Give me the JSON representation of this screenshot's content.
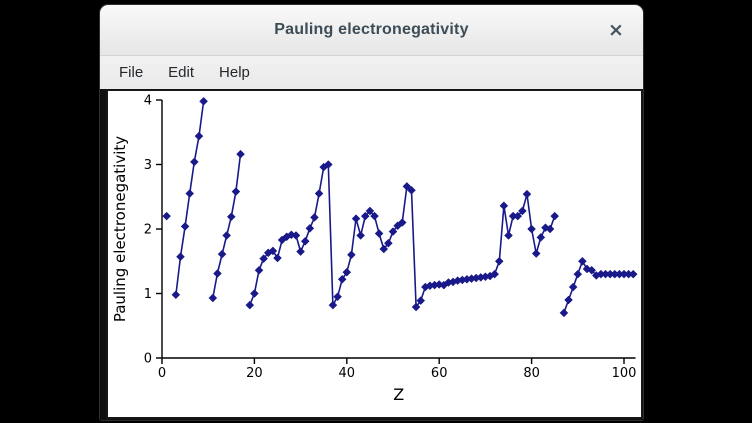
{
  "window": {
    "title": "Pauling electronegativity",
    "close_glyph": "×",
    "menu": [
      {
        "label": "File"
      },
      {
        "label": "Edit"
      },
      {
        "label": "Help"
      }
    ]
  },
  "colors": {
    "screen_background": "#000000",
    "titlebar_text": "#3d4c56",
    "menu_text": "#23282c",
    "canvas_background": "#ffffff",
    "series_color": "#191989",
    "axis_color": "#000000"
  },
  "chart_data": {
    "type": "line",
    "title": "",
    "xlabel": "Z",
    "ylabel": "Pauling electronegativity",
    "xlim": [
      0,
      102.5
    ],
    "ylim": [
      0,
      4
    ],
    "xticks": [
      0,
      20,
      40,
      60,
      80,
      100
    ],
    "yticks": [
      0,
      1,
      2,
      3,
      4
    ],
    "grid": false,
    "legend_position": "none",
    "marker": "diamond",
    "line_color": "#191989",
    "note": "Line breaks occur at atomic numbers with no value (He, Ne, Ar, Rn)",
    "series": [
      {
        "name": "Pauling electronegativity",
        "points": [
          [
            1,
            2.2
          ],
          [
            3,
            0.98
          ],
          [
            4,
            1.57
          ],
          [
            5,
            2.04
          ],
          [
            6,
            2.55
          ],
          [
            7,
            3.04
          ],
          [
            8,
            3.44
          ],
          [
            9,
            3.98
          ],
          [
            11,
            0.93
          ],
          [
            12,
            1.31
          ],
          [
            13,
            1.61
          ],
          [
            14,
            1.9
          ],
          [
            15,
            2.19
          ],
          [
            16,
            2.58
          ],
          [
            17,
            3.16
          ],
          [
            19,
            0.82
          ],
          [
            20,
            1.0
          ],
          [
            21,
            1.36
          ],
          [
            22,
            1.54
          ],
          [
            23,
            1.63
          ],
          [
            24,
            1.66
          ],
          [
            25,
            1.55
          ],
          [
            26,
            1.83
          ],
          [
            27,
            1.88
          ],
          [
            28,
            1.91
          ],
          [
            29,
            1.9
          ],
          [
            30,
            1.65
          ],
          [
            31,
            1.81
          ],
          [
            32,
            2.01
          ],
          [
            33,
            2.18
          ],
          [
            34,
            2.55
          ],
          [
            35,
            2.96
          ],
          [
            36,
            3.0
          ],
          [
            37,
            0.82
          ],
          [
            38,
            0.95
          ],
          [
            39,
            1.22
          ],
          [
            40,
            1.33
          ],
          [
            41,
            1.6
          ],
          [
            42,
            2.16
          ],
          [
            43,
            1.9
          ],
          [
            44,
            2.2
          ],
          [
            45,
            2.28
          ],
          [
            46,
            2.2
          ],
          [
            47,
            1.93
          ],
          [
            48,
            1.69
          ],
          [
            49,
            1.78
          ],
          [
            50,
            1.96
          ],
          [
            51,
            2.05
          ],
          [
            52,
            2.1
          ],
          [
            53,
            2.66
          ],
          [
            54,
            2.6
          ],
          [
            55,
            0.79
          ],
          [
            56,
            0.89
          ],
          [
            57,
            1.1
          ],
          [
            58,
            1.12
          ],
          [
            59,
            1.13
          ],
          [
            60,
            1.14
          ],
          [
            61,
            1.13
          ],
          [
            62,
            1.17
          ],
          [
            63,
            1.18
          ],
          [
            64,
            1.2
          ],
          [
            65,
            1.21
          ],
          [
            66,
            1.22
          ],
          [
            67,
            1.23
          ],
          [
            68,
            1.24
          ],
          [
            69,
            1.25
          ],
          [
            70,
            1.26
          ],
          [
            71,
            1.27
          ],
          [
            72,
            1.3
          ],
          [
            73,
            1.5
          ],
          [
            74,
            2.36
          ],
          [
            75,
            1.9
          ],
          [
            76,
            2.2
          ],
          [
            77,
            2.2
          ],
          [
            78,
            2.28
          ],
          [
            79,
            2.54
          ],
          [
            80,
            2.0
          ],
          [
            81,
            1.62
          ],
          [
            82,
            1.87
          ],
          [
            83,
            2.02
          ],
          [
            84,
            2.0
          ],
          [
            85,
            2.2
          ],
          [
            87,
            0.7
          ],
          [
            88,
            0.9
          ],
          [
            89,
            1.1
          ],
          [
            90,
            1.3
          ],
          [
            91,
            1.5
          ],
          [
            92,
            1.38
          ],
          [
            93,
            1.36
          ],
          [
            94,
            1.28
          ],
          [
            95,
            1.3
          ],
          [
            96,
            1.3
          ],
          [
            97,
            1.3
          ],
          [
            98,
            1.3
          ],
          [
            99,
            1.3
          ],
          [
            100,
            1.3
          ],
          [
            101,
            1.3
          ],
          [
            102,
            1.3
          ]
        ]
      }
    ]
  }
}
